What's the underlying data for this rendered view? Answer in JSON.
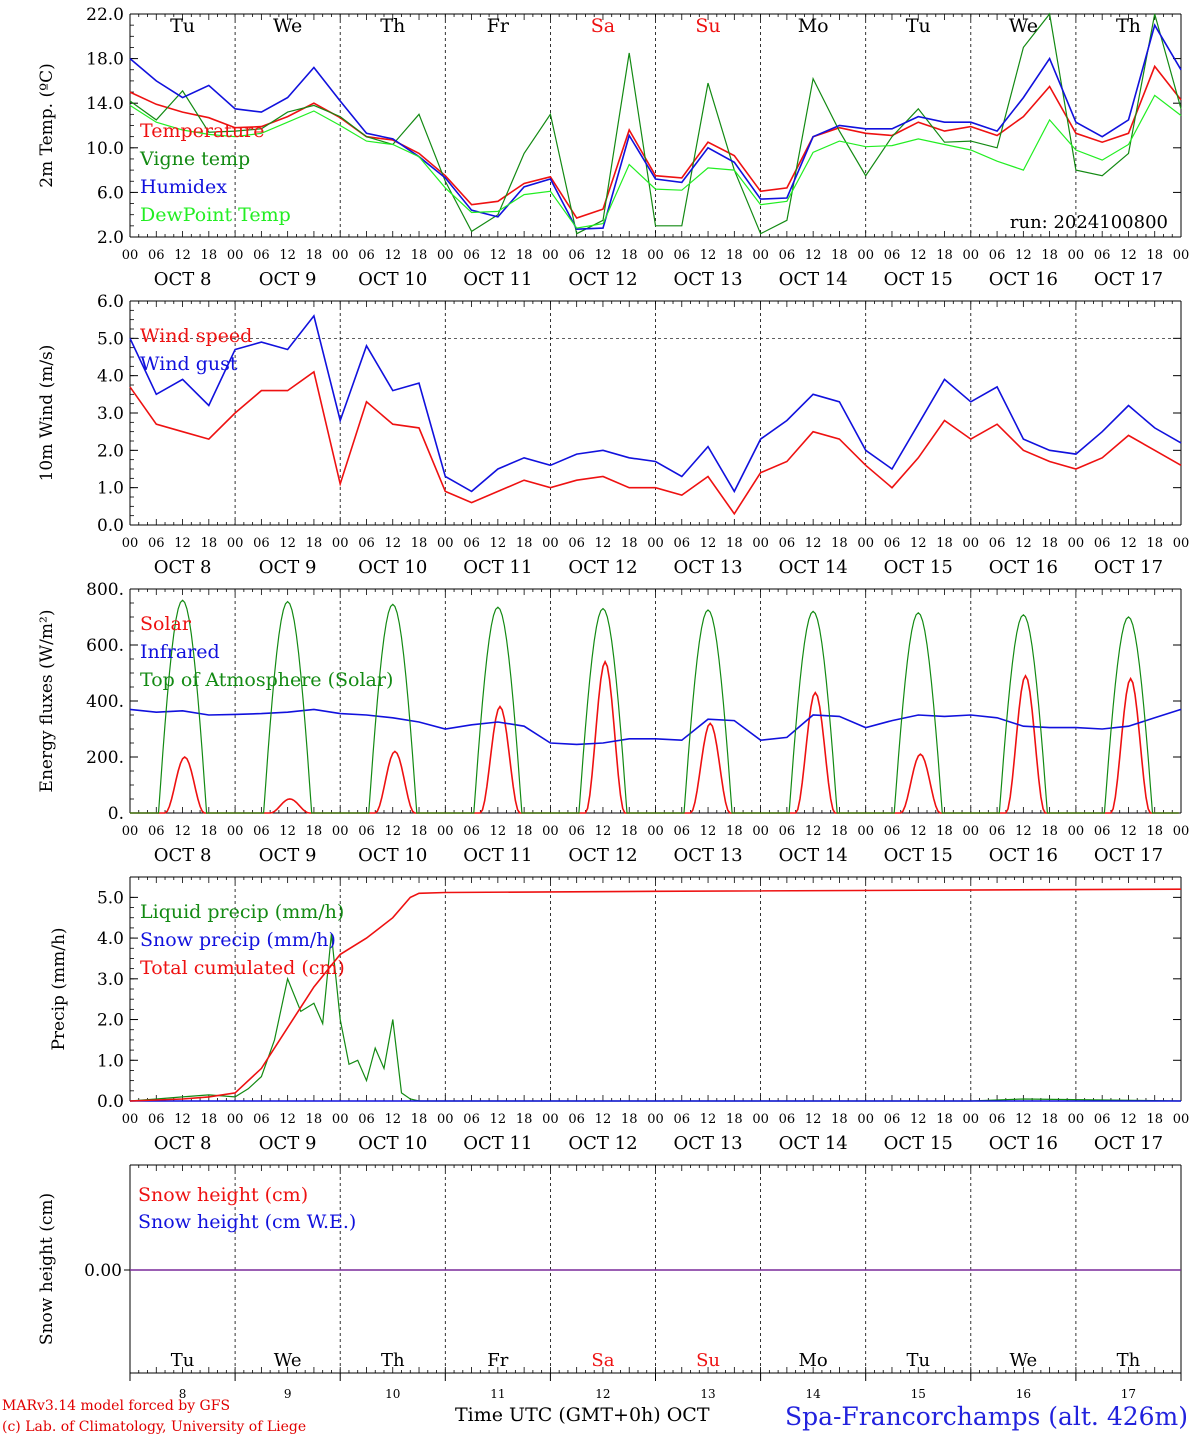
{
  "meta": {
    "day_names": [
      "Tu",
      "We",
      "Th",
      "Fr",
      "Sa",
      "Su",
      "Mo",
      "Tu",
      "We",
      "Th"
    ],
    "weekend_days": [
      4,
      5
    ],
    "day_labels": [
      "OCT  8",
      "OCT  9",
      "OCT 10",
      "OCT 11",
      "OCT 12",
      "OCT 13",
      "OCT 14",
      "OCT 15",
      "OCT 16",
      "OCT 17"
    ],
    "day_numbers": [
      "8",
      "9",
      "10",
      "11",
      "12",
      "13",
      "14",
      "15",
      "16",
      "17"
    ],
    "hour_ticks": [
      "00",
      "06",
      "12",
      "18"
    ],
    "run_label": "run: 2024100800",
    "colors": {
      "red": "#ee1111",
      "green": "#138a13",
      "blue": "#1111dd",
      "lightgreen": "#22ee22",
      "purple": "#7a2a9a"
    }
  },
  "footer": {
    "model": "MARv3.14 model forced by GFS",
    "copyright": "(c) Lab. of Climatology, University of Liege",
    "time_label": "Time UTC (GMT+0h) OCT",
    "station": "Spa-Francorchamps (alt. 426m)"
  },
  "chart_data": [
    {
      "type": "line",
      "ylabel": "2m Temp. (ºC)",
      "ylim": [
        2,
        22
      ],
      "yticks": [
        "2.0",
        "6.0",
        "10.0",
        "14.0",
        "18.0",
        "22.0"
      ],
      "x_unit": "hours since 2024-10-08 00 UTC",
      "series": [
        {
          "name": "Temperature",
          "color": "red",
          "x": [
            0,
            6,
            12,
            18,
            24,
            30,
            36,
            42,
            48,
            54,
            60,
            66,
            72,
            78,
            84,
            90,
            96,
            102,
            108,
            114,
            120,
            126,
            132,
            138,
            144,
            150,
            156,
            162,
            168,
            174,
            180,
            186,
            192,
            198,
            204,
            210,
            216,
            222,
            228,
            234,
            240
          ],
          "values": [
            15.0,
            13.9,
            13.2,
            12.7,
            11.8,
            11.9,
            12.8,
            14.0,
            12.7,
            11.0,
            10.7,
            9.5,
            7.5,
            4.9,
            5.2,
            6.8,
            7.4,
            3.7,
            4.5,
            11.6,
            7.5,
            7.3,
            10.5,
            9.3,
            6.1,
            6.4,
            11.0,
            11.8,
            11.3,
            11.1,
            12.3,
            11.5,
            11.9,
            11.1,
            12.8,
            15.5,
            11.3,
            10.5,
            11.3,
            17.3,
            14.3
          ]
        },
        {
          "name": "Vigne temp",
          "color": "green",
          "x": [
            0,
            6,
            12,
            18,
            24,
            30,
            36,
            42,
            48,
            54,
            60,
            66,
            72,
            78,
            84,
            90,
            96,
            102,
            108,
            114,
            120,
            126,
            132,
            138,
            144,
            150,
            156,
            162,
            168,
            174,
            180,
            186,
            192,
            198,
            204,
            210,
            216,
            222,
            228,
            234,
            240
          ],
          "values": [
            14.2,
            12.5,
            15.1,
            11.4,
            11.5,
            11.7,
            13.2,
            13.8,
            12.8,
            11.0,
            10.3,
            13.0,
            7.0,
            2.5,
            4.0,
            9.5,
            13.0,
            2.3,
            3.5,
            18.5,
            3.0,
            3.0,
            15.8,
            8.0,
            2.3,
            3.5,
            16.2,
            11.5,
            7.5,
            11.0,
            13.5,
            10.5,
            10.6,
            10.0,
            19.0,
            22.0,
            8.0,
            7.5,
            9.5,
            22.0,
            13.5
          ]
        },
        {
          "name": "Humidex",
          "color": "blue",
          "x": [
            0,
            6,
            12,
            18,
            24,
            30,
            36,
            42,
            48,
            54,
            60,
            66,
            72,
            78,
            84,
            90,
            96,
            102,
            108,
            114,
            120,
            126,
            132,
            138,
            144,
            150,
            156,
            162,
            168,
            174,
            180,
            186,
            192,
            198,
            204,
            210,
            216,
            222,
            228,
            234,
            240
          ],
          "values": [
            18.0,
            16.0,
            14.5,
            15.6,
            13.5,
            13.2,
            14.5,
            17.2,
            14.2,
            11.3,
            10.8,
            9.2,
            7.3,
            4.4,
            3.8,
            6.5,
            7.2,
            2.7,
            2.8,
            11.1,
            7.2,
            6.9,
            10.0,
            8.7,
            5.4,
            5.5,
            11.0,
            12.0,
            11.7,
            11.7,
            12.8,
            12.3,
            12.3,
            11.5,
            14.5,
            18.0,
            12.3,
            11.0,
            12.5,
            21.0,
            17.0
          ]
        },
        {
          "name": "DewPoint Temp",
          "color": "lightgreen",
          "x": [
            0,
            6,
            12,
            18,
            24,
            30,
            36,
            42,
            48,
            54,
            60,
            66,
            72,
            78,
            84,
            90,
            96,
            102,
            108,
            114,
            120,
            126,
            132,
            138,
            144,
            150,
            156,
            162,
            168,
            174,
            180,
            186,
            192,
            198,
            204,
            210,
            216,
            222,
            228,
            234,
            240
          ],
          "values": [
            13.8,
            12.3,
            11.6,
            11.2,
            11.0,
            11.3,
            12.3,
            13.3,
            12.0,
            10.6,
            10.3,
            9.2,
            6.4,
            4.2,
            4.3,
            5.8,
            6.1,
            2.8,
            3.2,
            8.5,
            6.3,
            6.2,
            8.2,
            8.0,
            4.9,
            5.2,
            9.6,
            10.6,
            10.1,
            10.2,
            10.8,
            10.3,
            9.8,
            8.8,
            8.0,
            12.5,
            9.8,
            8.9,
            10.3,
            14.7,
            12.9
          ]
        }
      ]
    },
    {
      "type": "line",
      "ylabel": "10m Wind (m/s)",
      "ylim": [
        0,
        6
      ],
      "yticks": [
        "0.0",
        "1.0",
        "2.0",
        "3.0",
        "4.0",
        "5.0",
        "6.0"
      ],
      "reference_line": 5.0,
      "x_unit": "hours since 2024-10-08 00 UTC",
      "series": [
        {
          "name": "Wind speed",
          "color": "red",
          "x": [
            0,
            6,
            12,
            18,
            24,
            30,
            36,
            42,
            48,
            54,
            60,
            66,
            72,
            78,
            84,
            90,
            96,
            102,
            108,
            114,
            120,
            126,
            132,
            138,
            144,
            150,
            156,
            162,
            168,
            174,
            180,
            186,
            192,
            198,
            204,
            210,
            216,
            222,
            228,
            234,
            240
          ],
          "values": [
            3.7,
            2.7,
            2.5,
            2.3,
            3.0,
            3.6,
            3.6,
            4.1,
            1.1,
            3.3,
            2.7,
            2.6,
            0.9,
            0.6,
            0.9,
            1.2,
            1.0,
            1.2,
            1.3,
            1.0,
            1.0,
            0.8,
            1.3,
            0.3,
            1.4,
            1.7,
            2.5,
            2.3,
            1.6,
            1.0,
            1.8,
            2.8,
            2.3,
            2.7,
            2.0,
            1.7,
            1.5,
            1.8,
            2.4,
            2.0,
            1.6
          ]
        },
        {
          "name": "Wind gust",
          "color": "blue",
          "x": [
            0,
            6,
            12,
            18,
            24,
            30,
            36,
            42,
            48,
            54,
            60,
            66,
            72,
            78,
            84,
            90,
            96,
            102,
            108,
            114,
            120,
            126,
            132,
            138,
            144,
            150,
            156,
            162,
            168,
            174,
            180,
            186,
            192,
            198,
            204,
            210,
            216,
            222,
            228,
            234,
            240
          ],
          "values": [
            5.0,
            3.5,
            3.9,
            3.2,
            4.7,
            4.9,
            4.7,
            5.6,
            2.8,
            4.8,
            3.6,
            3.8,
            1.3,
            0.9,
            1.5,
            1.8,
            1.6,
            1.9,
            2.0,
            1.8,
            1.7,
            1.3,
            2.1,
            0.9,
            2.3,
            2.8,
            3.5,
            3.3,
            2.0,
            1.5,
            2.7,
            3.9,
            3.3,
            3.7,
            2.3,
            2.0,
            1.9,
            2.5,
            3.2,
            2.6,
            2.2
          ]
        }
      ]
    },
    {
      "type": "line",
      "ylabel": "Energy fluxes (W/m²)",
      "ylim": [
        0,
        800
      ],
      "yticks": [
        "0.",
        "200.",
        "400.",
        "600.",
        "800."
      ],
      "x_unit": "hours since 2024-10-08 00 UTC",
      "toa_peaks": [
        760,
        755,
        745,
        735,
        730,
        725,
        720,
        715,
        708,
        700
      ],
      "solar_peaks": [
        200,
        50,
        220,
        380,
        540,
        320,
        430,
        210,
        490,
        480
      ],
      "series": [
        {
          "name": "Solar",
          "color": "red"
        },
        {
          "name": "Infrared",
          "color": "blue",
          "x": [
            0,
            6,
            12,
            18,
            24,
            30,
            36,
            42,
            48,
            54,
            60,
            66,
            72,
            78,
            84,
            90,
            96,
            102,
            108,
            114,
            120,
            126,
            132,
            138,
            144,
            150,
            156,
            162,
            168,
            174,
            180,
            186,
            192,
            198,
            204,
            210,
            216,
            222,
            228,
            234,
            240
          ],
          "values": [
            370,
            360,
            365,
            350,
            352,
            355,
            360,
            370,
            355,
            350,
            340,
            325,
            300,
            315,
            325,
            310,
            250,
            245,
            250,
            265,
            265,
            260,
            335,
            330,
            260,
            270,
            350,
            345,
            305,
            330,
            350,
            345,
            350,
            340,
            310,
            305,
            305,
            300,
            310,
            340,
            370
          ]
        },
        {
          "name": "Top of Atmosphere (Solar)",
          "color": "green"
        }
      ]
    },
    {
      "type": "line",
      "ylabel": "Precip (mm/h)",
      "ylim": [
        0,
        5.5
      ],
      "yticks": [
        "0.0",
        "1.0",
        "2.0",
        "3.0",
        "4.0",
        "5.0"
      ],
      "x_unit": "hours since 2024-10-08 00 UTC",
      "series": [
        {
          "name": "Liquid precip (mm/h)",
          "color": "green",
          "x": [
            0,
            6,
            12,
            18,
            24,
            27,
            30,
            33,
            36,
            39,
            42,
            44,
            46,
            48,
            50,
            52,
            54,
            56,
            58,
            60,
            62,
            64,
            66,
            72,
            96,
            144,
            192,
            204,
            240
          ],
          "values": [
            0.0,
            0.05,
            0.1,
            0.15,
            0.1,
            0.3,
            0.6,
            1.5,
            3.0,
            2.2,
            2.4,
            1.9,
            4.1,
            2.0,
            0.9,
            1.0,
            0.5,
            1.3,
            0.8,
            2.0,
            0.2,
            0.05,
            0.0,
            0.0,
            0.0,
            0.0,
            0.0,
            0.05,
            0.0
          ]
        },
        {
          "name": "Snow precip (mm/h)",
          "color": "blue",
          "x": [
            0,
            240
          ],
          "values": [
            0.0,
            0.0
          ]
        },
        {
          "name": "Total cumulated (cm)",
          "color": "red",
          "x": [
            0,
            12,
            18,
            24,
            30,
            36,
            42,
            48,
            54,
            60,
            64,
            66,
            72,
            120,
            240
          ],
          "values": [
            0.0,
            0.05,
            0.1,
            0.2,
            0.8,
            1.8,
            2.8,
            3.6,
            4.0,
            4.5,
            5.0,
            5.1,
            5.12,
            5.15,
            5.2
          ]
        }
      ]
    },
    {
      "type": "line",
      "ylabel": "Snow height (cm)",
      "yticks": [
        "0.00"
      ],
      "x_unit": "hours since 2024-10-08 00 UTC",
      "series": [
        {
          "name": "Snow height (cm)",
          "color": "red",
          "x": [
            0,
            240
          ],
          "values": [
            0.0,
            0.0
          ]
        },
        {
          "name": "Snow height (cm W.E.)",
          "color": "blue",
          "x": [
            0,
            240
          ],
          "values": [
            0.0,
            0.0
          ]
        }
      ]
    }
  ]
}
